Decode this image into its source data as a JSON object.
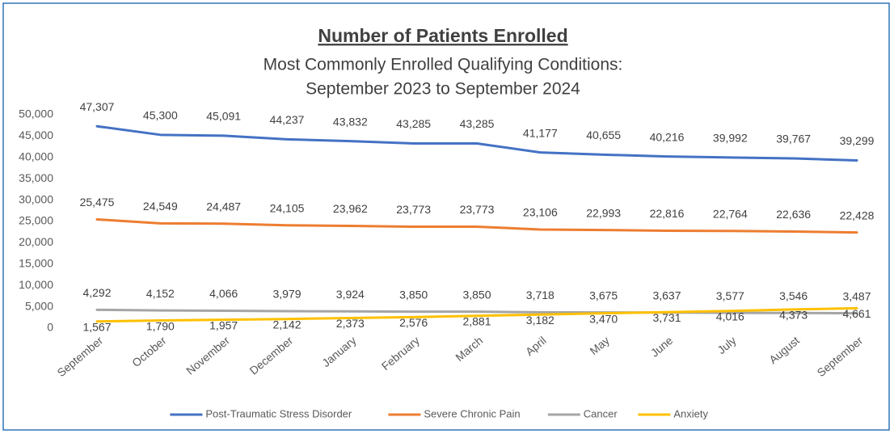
{
  "chart_data": {
    "type": "line",
    "title": "Number of Patients Enrolled",
    "subtitle": [
      "Most Commonly Enrolled Qualifying Conditions:",
      "September 2023 to September 2024"
    ],
    "categories": [
      "September",
      "October",
      "November",
      "December",
      "January",
      "February",
      "March",
      "April",
      "May",
      "June",
      "July",
      "August",
      "September"
    ],
    "series": [
      {
        "name": "Post-Traumatic Stress Disorder",
        "color": "#4472c4",
        "values": [
          47307,
          45300,
          45091,
          44237,
          43832,
          43285,
          43285,
          41177,
          40655,
          40216,
          39992,
          39767,
          39299
        ],
        "value_labels": [
          "47,307",
          "45,300",
          "45,091",
          "44,237",
          "43,832",
          "43,285",
          "43,285",
          "41,177",
          "40,655",
          "40,216",
          "39,992",
          "39,767",
          "39,299"
        ]
      },
      {
        "name": "Severe Chronic Pain",
        "color": "#ed7d31",
        "values": [
          25475,
          24549,
          24487,
          24105,
          23962,
          23773,
          23773,
          23106,
          22993,
          22816,
          22764,
          22636,
          22428
        ],
        "value_labels": [
          "25,475",
          "24,549",
          "24,487",
          "24,105",
          "23,962",
          "23,773",
          "23,773",
          "23,106",
          "22,993",
          "22,816",
          "22,764",
          "22,636",
          "22,428"
        ]
      },
      {
        "name": "Cancer",
        "color": "#a5a5a5",
        "values": [
          4292,
          4152,
          4066,
          3979,
          3924,
          3850,
          3850,
          3718,
          3675,
          3637,
          3577,
          3546,
          3487
        ],
        "value_labels": [
          "4,292",
          "4,152",
          "4,066",
          "3,979",
          "3,924",
          "3,850",
          "3,850",
          "3,718",
          "3,675",
          "3,637",
          "3,577",
          "3,546",
          "3,487"
        ]
      },
      {
        "name": "Anxiety",
        "color": "#ffc000",
        "values": [
          1567,
          1790,
          1957,
          2142,
          2373,
          2576,
          2881,
          3182,
          3470,
          3731,
          4016,
          4373,
          4661
        ],
        "value_labels": [
          "1,567",
          "1,790",
          "1,957",
          "2,142",
          "2,373",
          "2,576",
          "2,881",
          "3,182",
          "3,470",
          "3,731",
          "4,016",
          "4,373",
          "4,661"
        ]
      }
    ],
    "ylim": [
      0,
      50000
    ],
    "yticks": [
      0,
      {
        "value": 5000,
        "label": "5,000"
      },
      {
        "value": 10000,
        "label": "10,000"
      },
      {
        "value": 15000,
        "label": "15,000"
      },
      {
        "value": 20000,
        "label": "20,000"
      },
      {
        "value": 25000,
        "label": "25,000"
      },
      {
        "value": 30000,
        "label": "30,000"
      },
      {
        "value": 35000,
        "label": "35,000"
      },
      {
        "value": 40000,
        "label": "40,000"
      },
      {
        "value": 45000,
        "label": "45,000"
      },
      {
        "value": 50000,
        "label": "50,000"
      }
    ],
    "grid": false,
    "legend": "bottom"
  }
}
